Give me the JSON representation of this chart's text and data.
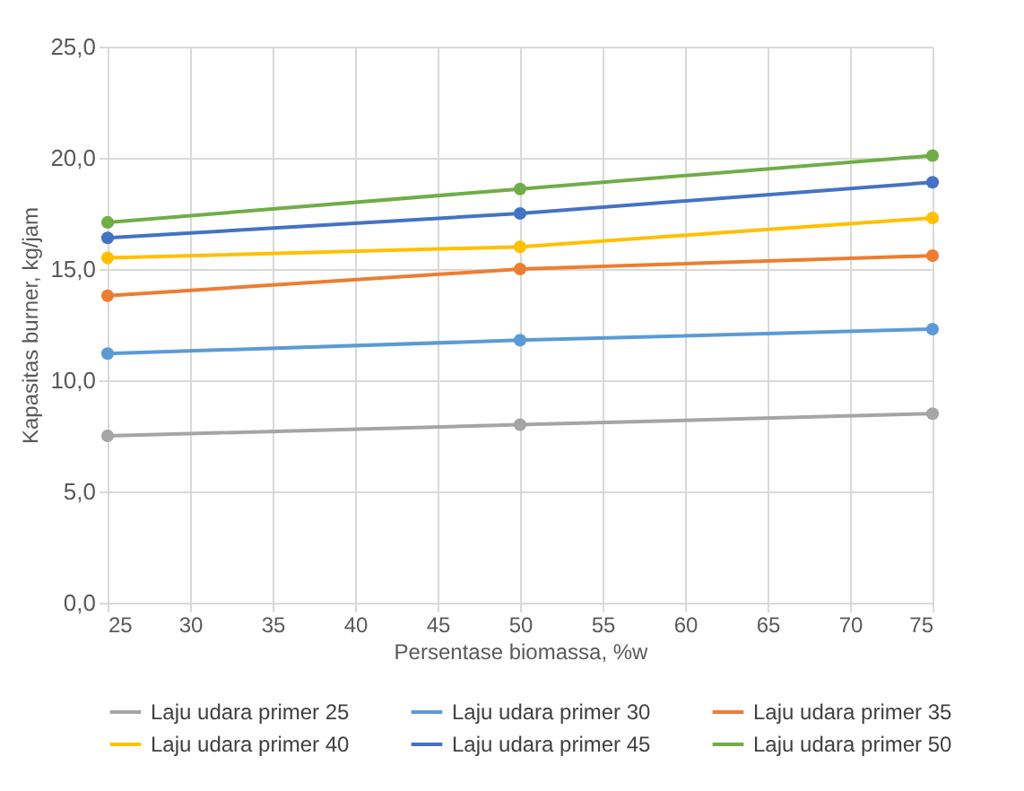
{
  "chart_data": {
    "type": "line",
    "xlabel": "Persentase biomassa, %w",
    "ylabel": "Kapasitas burner, kg/jam",
    "x": [
      25,
      50,
      75
    ],
    "series": [
      {
        "name": "Laju udara primer 25",
        "color": "#a5a5a5",
        "values": [
          7.5,
          8.0,
          8.5
        ]
      },
      {
        "name": "Laju udara primer 30",
        "color": "#5b9bd5",
        "values": [
          11.2,
          11.8,
          12.3
        ]
      },
      {
        "name": "Laju udara primer 35",
        "color": "#ed7d31",
        "values": [
          13.8,
          15.0,
          15.6
        ]
      },
      {
        "name": "Laju udara primer 40",
        "color": "#ffc000",
        "values": [
          15.5,
          16.0,
          17.3
        ]
      },
      {
        "name": "Laju udara primer 45",
        "color": "#4472c4",
        "values": [
          16.4,
          17.5,
          18.9
        ]
      },
      {
        "name": "Laju udara primer 50",
        "color": "#70ad47",
        "values": [
          17.1,
          18.6,
          20.1
        ]
      }
    ],
    "xlim": [
      25,
      75
    ],
    "xticks": [
      25,
      30,
      35,
      40,
      45,
      50,
      55,
      60,
      65,
      70,
      75
    ],
    "ylim": [
      0,
      25
    ],
    "yticks": [
      {
        "value": 0,
        "label": "0,0"
      },
      {
        "value": 5,
        "label": "5,0"
      },
      {
        "value": 10,
        "label": "10,0"
      },
      {
        "value": 15,
        "label": "15,0"
      },
      {
        "value": 20,
        "label": "20,0"
      },
      {
        "value": 25,
        "label": "25,0"
      }
    ],
    "grid": true,
    "legend": "bottom",
    "marker": "circle",
    "line_style": "solid"
  }
}
